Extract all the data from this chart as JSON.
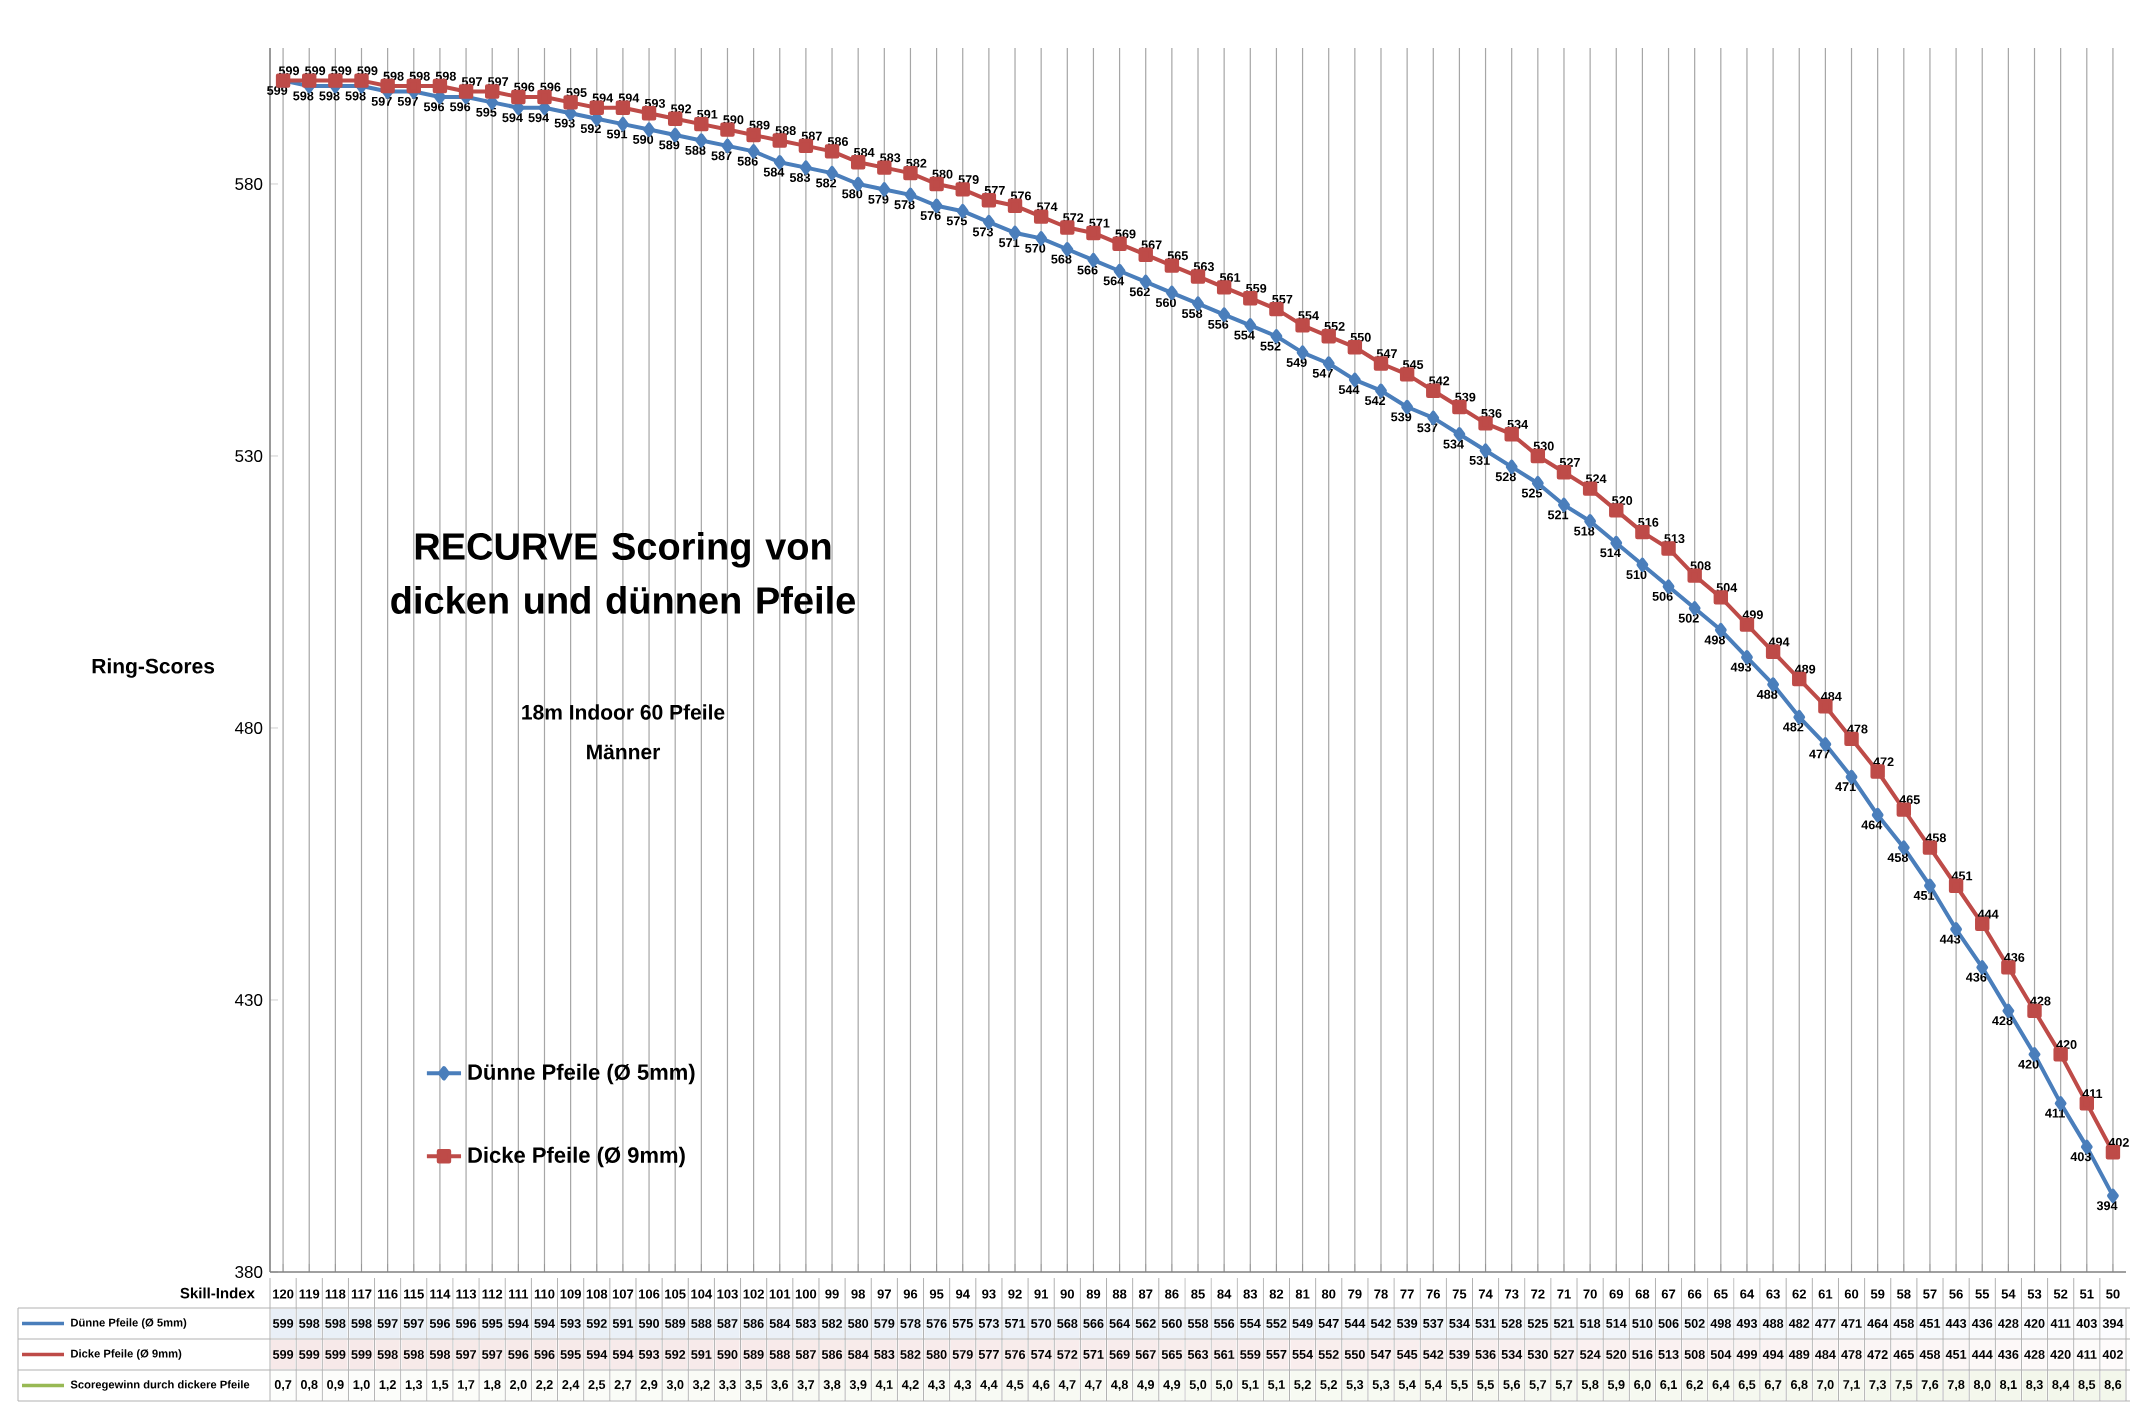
{
  "chart_data": [
    {
      "type": "line",
      "title": "RECURVE Scoring von dicken und dünnen Pfeile",
      "subtitle": "18m Indoor 60 Pfeile",
      "annotations": [
        "Männer"
      ],
      "ylabel": "Ring-Scores",
      "categories": [
        "120",
        "119",
        "118",
        "117",
        "116",
        "115",
        "114",
        "113",
        "112",
        "111",
        "110",
        "109",
        "108",
        "107",
        "106",
        "105",
        "104",
        "103",
        "102",
        "101",
        "100",
        "99",
        "98",
        "97",
        "96",
        "95",
        "94",
        "93",
        "92",
        "91",
        "90",
        "89",
        "88",
        "87",
        "86",
        "85",
        "84",
        "83",
        "82",
        "81",
        "80",
        "79",
        "78",
        "77",
        "76",
        "75",
        "74",
        "73",
        "72",
        "71",
        "70",
        "69",
        "68",
        "67",
        "66",
        "65",
        "64",
        "63",
        "62",
        "61",
        "60",
        "59",
        "58",
        "57",
        "56",
        "55",
        "54",
        "53",
        "52",
        "51",
        "50"
      ],
      "ylim": [
        380,
        605
      ],
      "yticks": [
        380,
        430,
        480,
        530,
        580
      ],
      "tick_labels": "y",
      "grid": "x",
      "legend": "bottom left",
      "series": [
        {
          "name": "Dünne Pfeile (Ø 5mm)",
          "color": "#4a7ebb",
          "marker": "diamond",
          "values": [
            599,
            598,
            598,
            598,
            597,
            597,
            596,
            596,
            595,
            594,
            594,
            593,
            592,
            591,
            590,
            589,
            588,
            587,
            586,
            584,
            583,
            582,
            580,
            579,
            578,
            576,
            575,
            573,
            571,
            570,
            568,
            566,
            564,
            562,
            560,
            558,
            556,
            554,
            552,
            549,
            547,
            544,
            542,
            539,
            537,
            534,
            531,
            528,
            525,
            521,
            518,
            514,
            510,
            506,
            502,
            498,
            493,
            488,
            482,
            477,
            471,
            464,
            458,
            451,
            443,
            436,
            428,
            420,
            411,
            403,
            394
          ],
          "value_labels": [
            "599",
            "598",
            "598",
            "598",
            "597",
            "597",
            "596",
            "596",
            "595",
            "594",
            "594",
            "593",
            "592",
            "591",
            "590",
            "589",
            "588",
            "587",
            "586",
            "584",
            "583",
            "582",
            "580",
            "579",
            "578",
            "576",
            "575",
            "573",
            "571",
            "570",
            "568",
            "566",
            "564",
            "562",
            "560",
            "558",
            "556",
            "554",
            "552",
            "549",
            "547",
            "544",
            "542",
            "539",
            "537",
            "534",
            "531",
            "528",
            "525",
            "521",
            "518",
            "514",
            "510",
            "506",
            "502",
            "498",
            "493",
            "488",
            "482",
            "477",
            "471",
            "464",
            "458",
            "451",
            "443",
            "436",
            "428",
            "420",
            "411",
            "403",
            "394"
          ]
        },
        {
          "name": "Dicke Pfeile (Ø 9mm)",
          "color": "#be4b48",
          "marker": "square",
          "values": [
            599,
            599,
            599,
            599,
            598,
            598,
            598,
            597,
            597,
            596,
            596,
            595,
            594,
            594,
            593,
            592,
            591,
            590,
            589,
            588,
            587,
            586,
            584,
            583,
            582,
            580,
            579,
            577,
            576,
            574,
            572,
            571,
            569,
            567,
            565,
            563,
            561,
            559,
            557,
            554,
            552,
            550,
            547,
            545,
            542,
            539,
            536,
            534,
            530,
            527,
            524,
            520,
            516,
            513,
            508,
            504,
            499,
            494,
            489,
            484,
            478,
            472,
            465,
            458,
            451,
            444,
            436,
            428,
            420,
            411,
            402
          ],
          "value_labels": [
            "599",
            "599",
            "599",
            "599",
            "598",
            "598",
            "598",
            "597",
            "597",
            "596",
            "596",
            "595",
            "594",
            "594",
            "593",
            "592",
            "591",
            "590",
            "589",
            "588",
            "587",
            "586",
            "584",
            "583",
            "582",
            "580",
            "579",
            "577",
            "576",
            "574",
            "572",
            "571",
            "569",
            "567",
            "565",
            "563",
            "561",
            "559",
            "557",
            "554",
            "552",
            "550",
            "547",
            "545",
            "542",
            "539",
            "536",
            "534",
            "530",
            "527",
            "524",
            "520",
            "516",
            "513",
            "508",
            "504",
            "499",
            "494",
            "489",
            "484",
            "478",
            "472",
            "465",
            "458",
            "451",
            "444",
            "436",
            "428",
            "420",
            "411",
            "402"
          ]
        }
      ]
    },
    {
      "type": "heatmap",
      "xlabel": "Skill-Index",
      "categories": [
        "120",
        "119",
        "118",
        "117",
        "116",
        "115",
        "114",
        "113",
        "112",
        "111",
        "110",
        "109",
        "108",
        "107",
        "106",
        "105",
        "104",
        "103",
        "102",
        "101",
        "100",
        "99",
        "98",
        "97",
        "96",
        "95",
        "94",
        "93",
        "92",
        "91",
        "90",
        "89",
        "88",
        "87",
        "86",
        "85",
        "84",
        "83",
        "82",
        "81",
        "80",
        "79",
        "78",
        "77",
        "76",
        "75",
        "74",
        "73",
        "72",
        "71",
        "70",
        "69",
        "68",
        "67",
        "66",
        "65",
        "64",
        "63",
        "62",
        "61",
        "60",
        "59",
        "58",
        "57",
        "56",
        "55",
        "54",
        "53",
        "52",
        "51",
        "50"
      ],
      "y_categories": [
        "Dünne Pfeile (Ø 5mm)",
        "Dicke Pfeile (Ø 9mm)",
        "Scoregewinn durch dickere Pfeile"
      ],
      "colors": [
        "#4a7ebb",
        "#be4b48",
        "#98b954"
      ],
      "cells": [
        [
          599,
          598,
          598,
          598,
          597,
          597,
          596,
          596,
          595,
          594,
          594,
          593,
          592,
          591,
          590,
          589,
          588,
          587,
          586,
          584,
          583,
          582,
          580,
          579,
          578,
          576,
          575,
          573,
          571,
          570,
          568,
          566,
          564,
          562,
          560,
          558,
          556,
          554,
          552,
          549,
          547,
          544,
          542,
          539,
          537,
          534,
          531,
          528,
          525,
          521,
          518,
          514,
          510,
          506,
          502,
          498,
          493,
          488,
          482,
          477,
          471,
          464,
          458,
          451,
          443,
          436,
          428,
          420,
          411,
          403,
          394
        ],
        [
          599,
          599,
          599,
          599,
          598,
          598,
          598,
          597,
          597,
          596,
          596,
          595,
          594,
          594,
          593,
          592,
          591,
          590,
          589,
          588,
          587,
          586,
          584,
          583,
          582,
          580,
          579,
          577,
          576,
          574,
          572,
          571,
          569,
          567,
          565,
          563,
          561,
          559,
          557,
          554,
          552,
          550,
          547,
          545,
          542,
          539,
          536,
          534,
          530,
          527,
          524,
          520,
          516,
          513,
          508,
          504,
          499,
          494,
          489,
          484,
          478,
          472,
          465,
          458,
          451,
          444,
          436,
          428,
          420,
          411,
          402
        ],
        [
          0.7,
          0.8,
          0.9,
          1.0,
          1.2,
          1.3,
          1.5,
          1.7,
          1.8,
          2.0,
          2.2,
          2.4,
          2.5,
          2.7,
          2.9,
          3.0,
          3.2,
          3.3,
          3.5,
          3.6,
          3.7,
          3.8,
          3.9,
          4.1,
          4.2,
          4.3,
          4.3,
          4.4,
          4.5,
          4.6,
          4.7,
          4.7,
          4.8,
          4.9,
          4.9,
          5.0,
          5.0,
          5.1,
          5.1,
          5.2,
          5.2,
          5.3,
          5.3,
          5.4,
          5.4,
          5.5,
          5.5,
          5.6,
          5.7,
          5.7,
          5.8,
          5.9,
          6.0,
          6.1,
          6.2,
          6.4,
          6.5,
          6.7,
          6.8,
          7.0,
          7.1,
          7.3,
          7.5,
          7.6,
          7.8,
          8.0,
          8.1,
          8.3,
          8.4,
          8.5,
          8.6
        ]
      ],
      "cell_labels": [
        [
          "599",
          "598",
          "598",
          "598",
          "597",
          "597",
          "596",
          "596",
          "595",
          "594",
          "594",
          "593",
          "592",
          "591",
          "590",
          "589",
          "588",
          "587",
          "586",
          "584",
          "583",
          "582",
          "580",
          "579",
          "578",
          "576",
          "575",
          "573",
          "571",
          "570",
          "568",
          "566",
          "564",
          "562",
          "560",
          "558",
          "556",
          "554",
          "552",
          "549",
          "547",
          "544",
          "542",
          "539",
          "537",
          "534",
          "531",
          "528",
          "525",
          "521",
          "518",
          "514",
          "510",
          "506",
          "502",
          "498",
          "493",
          "488",
          "482",
          "477",
          "471",
          "464",
          "458",
          "451",
          "443",
          "436",
          "428",
          "420",
          "411",
          "403",
          "394"
        ],
        [
          "599",
          "599",
          "599",
          "599",
          "598",
          "598",
          "598",
          "597",
          "597",
          "596",
          "596",
          "595",
          "594",
          "594",
          "593",
          "592",
          "591",
          "590",
          "589",
          "588",
          "587",
          "586",
          "584",
          "583",
          "582",
          "580",
          "579",
          "577",
          "576",
          "574",
          "572",
          "571",
          "569",
          "567",
          "565",
          "563",
          "561",
          "559",
          "557",
          "554",
          "552",
          "550",
          "547",
          "545",
          "542",
          "539",
          "536",
          "534",
          "530",
          "527",
          "524",
          "520",
          "516",
          "513",
          "508",
          "504",
          "499",
          "494",
          "489",
          "484",
          "478",
          "472",
          "465",
          "458",
          "451",
          "444",
          "436",
          "428",
          "420",
          "411",
          "402"
        ],
        [
          "0,7",
          "0,8",
          "0,9",
          "1,0",
          "1,2",
          "1,3",
          "1,5",
          "1,7",
          "1,8",
          "2,0",
          "2,2",
          "2,4",
          "2,5",
          "2,7",
          "2,9",
          "3,0",
          "3,2",
          "3,3",
          "3,5",
          "3,6",
          "3,7",
          "3,8",
          "3,9",
          "4,1",
          "4,2",
          "4,3",
          "4,3",
          "4,4",
          "4,5",
          "4,6",
          "4,7",
          "4,7",
          "4,8",
          "4,9",
          "4,9",
          "5,0",
          "5,0",
          "5,1",
          "5,1",
          "5,2",
          "5,2",
          "5,3",
          "5,3",
          "5,4",
          "5,4",
          "5,5",
          "5,5",
          "5,6",
          "5,7",
          "5,7",
          "5,8",
          "5,9",
          "6,0",
          "6,1",
          "6,2",
          "6,4",
          "6,5",
          "6,7",
          "6,8",
          "7,0",
          "7,1",
          "7,3",
          "7,5",
          "7,6",
          "7,8",
          "8,0",
          "8,1",
          "8,3",
          "8,4",
          "8,5",
          "8,6"
        ]
      ]
    }
  ]
}
